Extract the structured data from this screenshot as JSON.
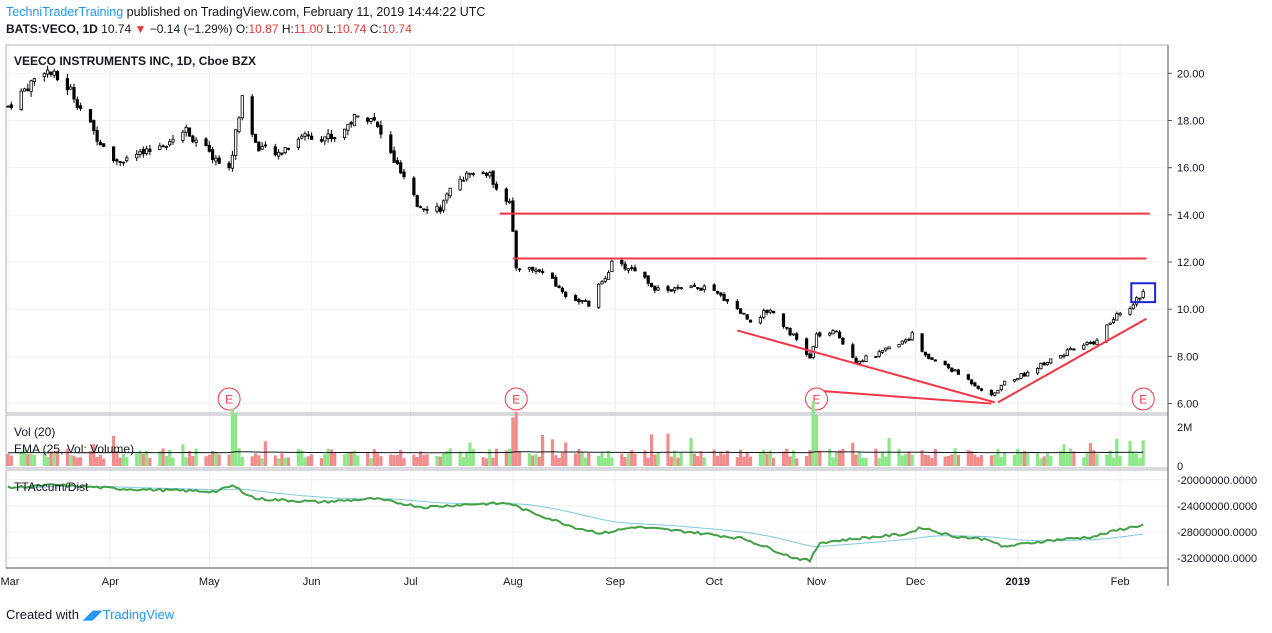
{
  "header": {
    "publisher": "TechniTraderTraining",
    "published_text": "published on TradingView.com, February 11, 2019 14:44:22 UTC",
    "symbol": "BATS:VECO, 1D",
    "last": "10.74",
    "change": "−0.14 (−1.29%)",
    "o_label": "O:",
    "o_value": "10.87",
    "h_label": "H:",
    "h_value": "11.00",
    "l_label": "L:",
    "l_value": "10.74",
    "c_label": "C:",
    "c_value": "10.74"
  },
  "footer": {
    "created_with": "Created with",
    "brand": "TradingView"
  },
  "colors": {
    "up_volume": "#8ee68a",
    "down_volume": "#f08c8c",
    "accum_line": "#43a047",
    "accum_ma": "#7ec8e3",
    "annotation": "#f23645",
    "earnings": "#f23645",
    "highlight_box": "#1e22d6"
  },
  "chart_data": [
    {
      "type": "candlestick",
      "title": "VEECO INSTRUMENTS INC, 1D, Cboe BZX",
      "ylim": [
        5.6,
        21.2
      ],
      "y_ticks": [
        "20.00",
        "18.00",
        "16.00",
        "14.00",
        "12.00",
        "10.00",
        "8.00",
        "6.00"
      ],
      "x_ticks": [
        "Mar",
        "Apr",
        "May",
        "Jun",
        "Jul",
        "Aug",
        "Sep",
        "Oct",
        "Nov",
        "Dec",
        "2019",
        "Feb"
      ],
      "price_path_points": [
        [
          "2018-03-01",
          18.6
        ],
        [
          "2018-03-08",
          19.6
        ],
        [
          "2018-03-12",
          20.2
        ],
        [
          "2018-03-20",
          19.3
        ],
        [
          "2018-03-27",
          17.5
        ],
        [
          "2018-04-03",
          16.3
        ],
        [
          "2018-04-12",
          16.6
        ],
        [
          "2018-04-24",
          17.6
        ],
        [
          "2018-05-01",
          16.6
        ],
        [
          "2018-05-07",
          15.9
        ],
        [
          "2018-05-11",
          19.0
        ],
        [
          "2018-05-15",
          17.0
        ],
        [
          "2018-05-21",
          16.5
        ],
        [
          "2018-05-29",
          17.4
        ],
        [
          "2018-06-08",
          17.3
        ],
        [
          "2018-06-14",
          18.1
        ],
        [
          "2018-06-19",
          18.2
        ],
        [
          "2018-06-26",
          16.3
        ],
        [
          "2018-07-03",
          14.4
        ],
        [
          "2018-07-10",
          14.3
        ],
        [
          "2018-07-16",
          15.6
        ],
        [
          "2018-07-24",
          15.8
        ],
        [
          "2018-07-31",
          14.5
        ],
        [
          "2018-08-02",
          11.8
        ],
        [
          "2018-08-10",
          11.6
        ],
        [
          "2018-08-17",
          10.6
        ],
        [
          "2018-08-24",
          10.2
        ],
        [
          "2018-08-31",
          11.9
        ],
        [
          "2018-09-07",
          11.7
        ],
        [
          "2018-09-14",
          10.8
        ],
        [
          "2018-09-28",
          10.9
        ],
        [
          "2018-10-05",
          10.4
        ],
        [
          "2018-10-12",
          9.5
        ],
        [
          "2018-10-18",
          10.0
        ],
        [
          "2018-10-26",
          8.7
        ],
        [
          "2018-10-30",
          7.9
        ],
        [
          "2018-11-01",
          8.9
        ],
        [
          "2018-11-07",
          9.0
        ],
        [
          "2018-11-13",
          7.8
        ],
        [
          "2018-11-20",
          8.1
        ],
        [
          "2018-11-30",
          8.9
        ],
        [
          "2018-12-04",
          8.0
        ],
        [
          "2018-12-10",
          7.6
        ],
        [
          "2018-12-17",
          7.0
        ],
        [
          "2018-12-24",
          6.3
        ],
        [
          "2018-12-28",
          6.9
        ],
        [
          "2019-01-04",
          7.3
        ],
        [
          "2019-01-11",
          7.9
        ],
        [
          "2019-01-18",
          8.3
        ],
        [
          "2019-01-24",
          8.6
        ],
        [
          "2019-01-30",
          9.6
        ],
        [
          "2019-02-04",
          10.1
        ],
        [
          "2019-02-08",
          10.74
        ]
      ],
      "horizontal_lines": [
        {
          "from": "2018-07-28",
          "to": "2019-02-10",
          "y": 14.05
        },
        {
          "from": "2018-08-01",
          "to": "2019-02-09",
          "y": 12.15
        }
      ],
      "trend_lines": [
        {
          "from": [
            "2018-10-08",
            9.1
          ],
          "to": [
            "2018-12-25",
            6.05
          ]
        },
        {
          "from": [
            "2018-11-01",
            6.55
          ],
          "to": [
            "2018-12-24",
            6.0
          ]
        },
        {
          "from": [
            "2018-12-26",
            6.05
          ],
          "to": [
            "2019-02-09",
            9.6
          ]
        }
      ],
      "highlight_box": {
        "from": "2019-02-05",
        "to": "2019-02-11",
        "ylim": [
          10.3,
          11.1
        ]
      },
      "earnings_markers": {
        "label": "E",
        "dates": [
          "2018-05-07",
          "2018-08-02",
          "2018-11-01",
          "2019-02-08"
        ]
      }
    },
    {
      "type": "bar",
      "title": "Vol (20)",
      "subtitle": "EMA (25, Vol: Volume)",
      "y_ticks": [
        "2M",
        "0"
      ],
      "ylim": [
        0,
        2000000
      ]
    },
    {
      "type": "line",
      "title": "TTAccum/Dist",
      "y_ticks": [
        "-20000000.0000",
        "-24000000.0000",
        "-28000000.0000",
        "-32000000.0000"
      ],
      "ylim": [
        -33500000,
        -18500000
      ],
      "points": [
        [
          "2018-03-01",
          -21200000
        ],
        [
          "2018-03-15",
          -20800000
        ],
        [
          "2018-04-05",
          -21400000
        ],
        [
          "2018-05-03",
          -21800000
        ],
        [
          "2018-05-08",
          -20900000
        ],
        [
          "2018-05-15",
          -22900000
        ],
        [
          "2018-06-04",
          -23400000
        ],
        [
          "2018-06-20",
          -22900000
        ],
        [
          "2018-07-05",
          -24200000
        ],
        [
          "2018-07-20",
          -23700000
        ],
        [
          "2018-07-31",
          -23600000
        ],
        [
          "2018-08-05",
          -24700000
        ],
        [
          "2018-08-20",
          -27300000
        ],
        [
          "2018-08-28",
          -28200000
        ],
        [
          "2018-09-07",
          -27200000
        ],
        [
          "2018-09-24",
          -28000000
        ],
        [
          "2018-10-10",
          -29000000
        ],
        [
          "2018-10-25",
          -31900000
        ],
        [
          "2018-10-30",
          -32400000
        ],
        [
          "2018-11-02",
          -29600000
        ],
        [
          "2018-11-15",
          -28900000
        ],
        [
          "2018-11-28",
          -28300000
        ],
        [
          "2018-12-03",
          -27300000
        ],
        [
          "2018-12-12",
          -28600000
        ],
        [
          "2018-12-24",
          -29200000
        ],
        [
          "2018-12-27",
          -30300000
        ],
        [
          "2019-01-10",
          -29300000
        ],
        [
          "2019-01-24",
          -28700000
        ],
        [
          "2019-02-01",
          -27600000
        ],
        [
          "2019-02-08",
          -26900000
        ]
      ]
    }
  ]
}
